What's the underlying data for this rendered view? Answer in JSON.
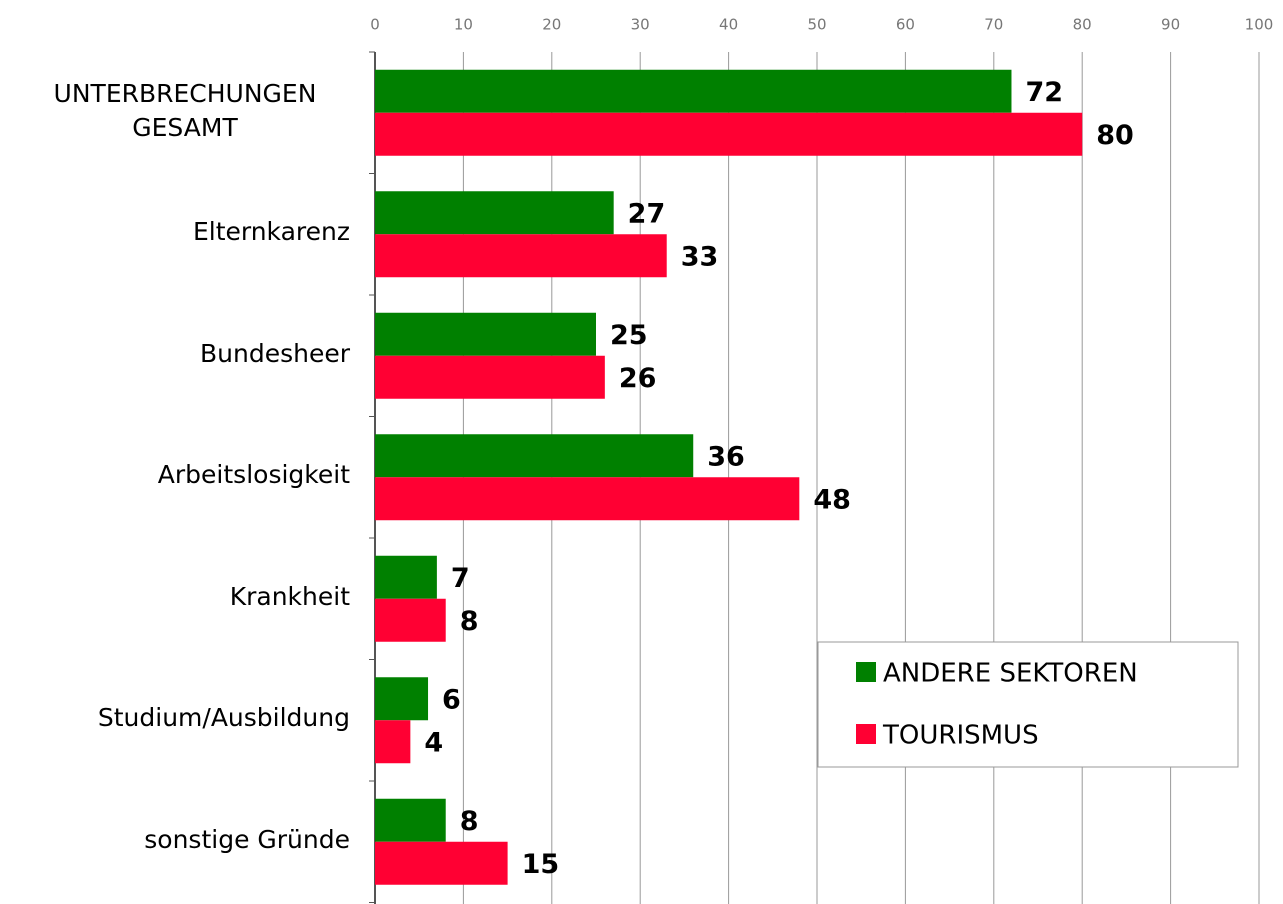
{
  "chart_data": {
    "type": "hbar",
    "categories": [
      "UNTERBRECHUNGEN GESAMT",
      "Elternkarenz",
      "Bundesheer",
      "Arbeitslosigkeit",
      "Krankheit",
      "Studium/Ausbildung",
      "sonstige Gründe"
    ],
    "series": [
      {
        "name": "ANDERE SEKTOREN",
        "color": "#008000",
        "values": [
          72,
          27,
          25,
          36,
          7,
          6,
          8
        ]
      },
      {
        "name": "TOURISMUS",
        "color": "#ff0033",
        "values": [
          80,
          33,
          26,
          48,
          8,
          4,
          15
        ]
      }
    ],
    "xlim": [
      0,
      100
    ],
    "xticks": [
      0,
      10,
      20,
      30,
      40,
      50,
      60,
      70,
      80,
      90,
      100
    ],
    "grid": true,
    "legend": "lower right"
  }
}
